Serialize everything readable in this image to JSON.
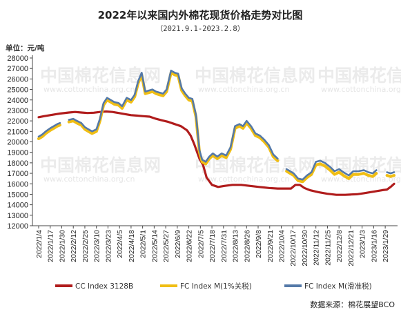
{
  "chart_data": {
    "type": "line",
    "title": "2022年以来国内外棉花现货价格走势对比图",
    "subtitle": "（2021.9.1-2023.2.8）",
    "ylabel": "单位：元/吨",
    "ylim": [
      12000,
      28000
    ],
    "yticks": [
      12000,
      13000,
      14000,
      15000,
      16000,
      17000,
      18000,
      19000,
      20000,
      21000,
      22000,
      23000,
      24000,
      25000,
      26000,
      27000,
      28000
    ],
    "xlim": [
      "2022/1/4",
      "2023/2/8"
    ],
    "categories": [
      "2022/1/4",
      "2022/1/17",
      "2022/1/30",
      "2022/2/12",
      "2022/2/25",
      "2022/3/10",
      "2022/3/23",
      "2022/4/5",
      "2022/4/18",
      "2022/5/1",
      "2022/5/14",
      "2022/5/27",
      "2022/6/9",
      "2022/6/22",
      "2022/7/5",
      "2022/7/18",
      "2022/7/31",
      "2022/8/13",
      "2022/8/26",
      "2022/9/8",
      "2022/9/21",
      "2022/10/4",
      "2022/10/17",
      "2022/10/30",
      "2022/11/12",
      "2022/11/25",
      "2022/12/8",
      "2022/12/21",
      "2023/1/3",
      "2023/1/16",
      "2023/1/29"
    ],
    "grid": false,
    "legend_position": "bottom",
    "source": "数据来源：棉花展望BCO",
    "series": [
      {
        "name": "CC Index 3128B",
        "color": "#b01c1c",
        "x": [
          "2022/1/4",
          "2022/1/10",
          "2022/1/17",
          "2022/1/24",
          "2022/1/28",
          "2022/2/7",
          "2022/2/14",
          "2022/2/21",
          "2022/2/28",
          "2022/3/7",
          "2022/3/14",
          "2022/3/21",
          "2022/3/28",
          "2022/4/4",
          "2022/4/11",
          "2022/4/18",
          "2022/4/25",
          "2022/5/2",
          "2022/5/9",
          "2022/5/16",
          "2022/5/23",
          "2022/5/30",
          "2022/6/6",
          "2022/6/13",
          "2022/6/20",
          "2022/6/24",
          "2022/6/28",
          "2022/7/4",
          "2022/7/8",
          "2022/7/12",
          "2022/7/18",
          "2022/7/25",
          "2022/8/1",
          "2022/8/10",
          "2022/8/20",
          "2022/8/30",
          "2022/9/9",
          "2022/9/20",
          "2022/9/30",
          "2022/10/8",
          "2022/10/15",
          "2022/10/20",
          "2022/10/25",
          "2022/10/30",
          "2022/11/5",
          "2022/11/15",
          "2022/11/25",
          "2022/12/5",
          "2022/12/15",
          "2022/12/22",
          "2022/12/28",
          "2023/1/5",
          "2023/1/12",
          "2023/1/19",
          "2023/1/26",
          "2023/1/31",
          "2023/2/4",
          "2023/2/8"
        ],
        "values": [
          22350,
          22450,
          22550,
          22650,
          22700,
          22800,
          22850,
          22800,
          22750,
          22780,
          22850,
          22900,
          22850,
          22750,
          22650,
          22550,
          22500,
          22450,
          22400,
          22200,
          22050,
          21900,
          21700,
          21500,
          21100,
          20600,
          19800,
          18400,
          17800,
          16600,
          15900,
          15700,
          15800,
          15900,
          15900,
          15800,
          15700,
          15600,
          15550,
          15550,
          15550,
          15900,
          15900,
          15600,
          15400,
          15200,
          15050,
          14950,
          14950,
          14980,
          15000,
          15100,
          15200,
          15300,
          15400,
          15450,
          15700,
          16000
        ]
      },
      {
        "name": "FC Index M(1%关税)",
        "color": "#f0be14",
        "x": [
          "2022/1/4",
          "2022/1/8",
          "2022/1/12",
          "2022/1/17",
          "2022/1/21",
          "2022/1/25",
          "2022/1/28",
          "2022/2/7",
          "2022/2/12",
          "2022/2/16",
          "2022/2/21",
          "2022/2/25",
          "2022/3/1",
          "2022/3/5",
          "2022/3/10",
          "2022/3/14",
          "2022/3/18",
          "2022/3/22",
          "2022/3/26",
          "2022/3/30",
          "2022/4/4",
          "2022/4/8",
          "2022/4/13",
          "2022/4/18",
          "2022/4/22",
          "2022/4/26",
          "2022/4/30",
          "2022/5/4",
          "2022/5/8",
          "2022/5/12",
          "2022/5/16",
          "2022/5/20",
          "2022/5/24",
          "2022/5/28",
          "2022/6/2",
          "2022/6/6",
          "2022/6/10",
          "2022/6/14",
          "2022/6/18",
          "2022/6/22",
          "2022/6/26",
          "2022/6/30",
          "2022/7/4",
          "2022/7/7",
          "2022/7/11",
          "2022/7/15",
          "2022/7/19",
          "2022/7/24",
          "2022/7/29",
          "2022/8/3",
          "2022/8/8",
          "2022/8/13",
          "2022/8/18",
          "2022/8/22",
          "2022/8/26",
          "2022/8/31",
          "2022/9/5",
          "2022/9/10",
          "2022/9/15",
          "2022/9/20",
          "2022/9/25",
          "2022/9/30",
          "2022/10/10",
          "2022/10/14",
          "2022/10/18",
          "2022/10/23",
          "2022/10/28",
          "2022/11/2",
          "2022/11/7",
          "2022/11/12",
          "2022/11/17",
          "2022/11/22",
          "2022/11/28",
          "2022/12/3",
          "2022/12/8",
          "2022/12/13",
          "2022/12/19",
          "2022/12/24",
          "2022/12/30",
          "2023/1/5",
          "2023/1/10",
          "2023/1/15",
          "2023/1/19",
          "2023/1/31",
          "2023/2/4",
          "2023/2/8"
        ],
        "values": [
          20300,
          20500,
          20800,
          21100,
          21300,
          21500,
          21600,
          21900,
          22000,
          21800,
          21600,
          21200,
          21000,
          20800,
          21000,
          22000,
          23500,
          24000,
          23800,
          23600,
          23500,
          23200,
          24000,
          23800,
          24300,
          25600,
          26400,
          24600,
          24700,
          24800,
          24600,
          24500,
          24400,
          24800,
          26600,
          26400,
          26300,
          24900,
          24400,
          24000,
          23900,
          22400,
          19000,
          18100,
          17900,
          18400,
          18700,
          18400,
          18700,
          18500,
          19300,
          21300,
          21500,
          21300,
          21800,
          21300,
          20600,
          20400,
          20000,
          19500,
          18600,
          18200,
          17200,
          17000,
          16800,
          16300,
          16200,
          16600,
          16900,
          17800,
          17900,
          17700,
          17300,
          16900,
          17100,
          16800,
          16500,
          16900,
          16900,
          17000,
          16800,
          16700,
          17000,
          16800,
          16700,
          16800
        ],
        "gaps_after": [
          "2022/1/28",
          "2022/9/30",
          "2023/1/19"
        ]
      },
      {
        "name": "FC Index M(滑准税)",
        "color": "#5479a8",
        "x": [
          "2022/1/4",
          "2022/1/8",
          "2022/1/12",
          "2022/1/17",
          "2022/1/21",
          "2022/1/25",
          "2022/1/28",
          "2022/2/7",
          "2022/2/12",
          "2022/2/16",
          "2022/2/21",
          "2022/2/25",
          "2022/3/1",
          "2022/3/5",
          "2022/3/10",
          "2022/3/14",
          "2022/3/18",
          "2022/3/22",
          "2022/3/26",
          "2022/3/30",
          "2022/4/4",
          "2022/4/8",
          "2022/4/13",
          "2022/4/18",
          "2022/4/22",
          "2022/4/26",
          "2022/4/30",
          "2022/5/4",
          "2022/5/8",
          "2022/5/12",
          "2022/5/16",
          "2022/5/20",
          "2022/5/24",
          "2022/5/28",
          "2022/6/2",
          "2022/6/6",
          "2022/6/10",
          "2022/6/14",
          "2022/6/18",
          "2022/6/22",
          "2022/6/26",
          "2022/6/30",
          "2022/7/4",
          "2022/7/7",
          "2022/7/11",
          "2022/7/15",
          "2022/7/19",
          "2022/7/24",
          "2022/7/29",
          "2022/8/3",
          "2022/8/8",
          "2022/8/13",
          "2022/8/18",
          "2022/8/22",
          "2022/8/26",
          "2022/8/31",
          "2022/9/5",
          "2022/9/10",
          "2022/9/15",
          "2022/9/20",
          "2022/9/25",
          "2022/9/30",
          "2022/10/10",
          "2022/10/14",
          "2022/10/18",
          "2022/10/23",
          "2022/10/28",
          "2022/11/2",
          "2022/11/7",
          "2022/11/12",
          "2022/11/17",
          "2022/11/22",
          "2022/11/28",
          "2022/12/3",
          "2022/12/8",
          "2022/12/13",
          "2022/12/19",
          "2022/12/24",
          "2022/12/30",
          "2023/1/5",
          "2023/1/10",
          "2023/1/15",
          "2023/1/19",
          "2023/1/31",
          "2023/2/4",
          "2023/2/8"
        ],
        "values": [
          20500,
          20700,
          21000,
          21300,
          21500,
          21700,
          21800,
          22100,
          22200,
          22000,
          21800,
          21400,
          21200,
          21000,
          21200,
          22200,
          23700,
          24200,
          24000,
          23800,
          23700,
          23400,
          24200,
          24000,
          24500,
          25800,
          26600,
          24800,
          24900,
          25000,
          24800,
          24700,
          24600,
          25000,
          26800,
          26600,
          26500,
          25100,
          24600,
          24200,
          24100,
          22600,
          19200,
          18300,
          18100,
          18600,
          18900,
          18600,
          18900,
          18700,
          19500,
          21500,
          21700,
          21500,
          22000,
          21500,
          20800,
          20600,
          20200,
          19700,
          18800,
          18400,
          17400,
          17200,
          17000,
          16500,
          16400,
          16800,
          17100,
          18100,
          18200,
          18000,
          17600,
          17200,
          17400,
          17100,
          16800,
          17200,
          17200,
          17300,
          17100,
          17000,
          17300,
          17100,
          17000,
          17100
        ],
        "gaps_after": [
          "2022/1/28",
          "2022/9/30",
          "2023/1/19"
        ]
      }
    ]
  },
  "watermark": {
    "text": "中国棉花信息网",
    "url": "www.cottonchina.org.cn"
  }
}
